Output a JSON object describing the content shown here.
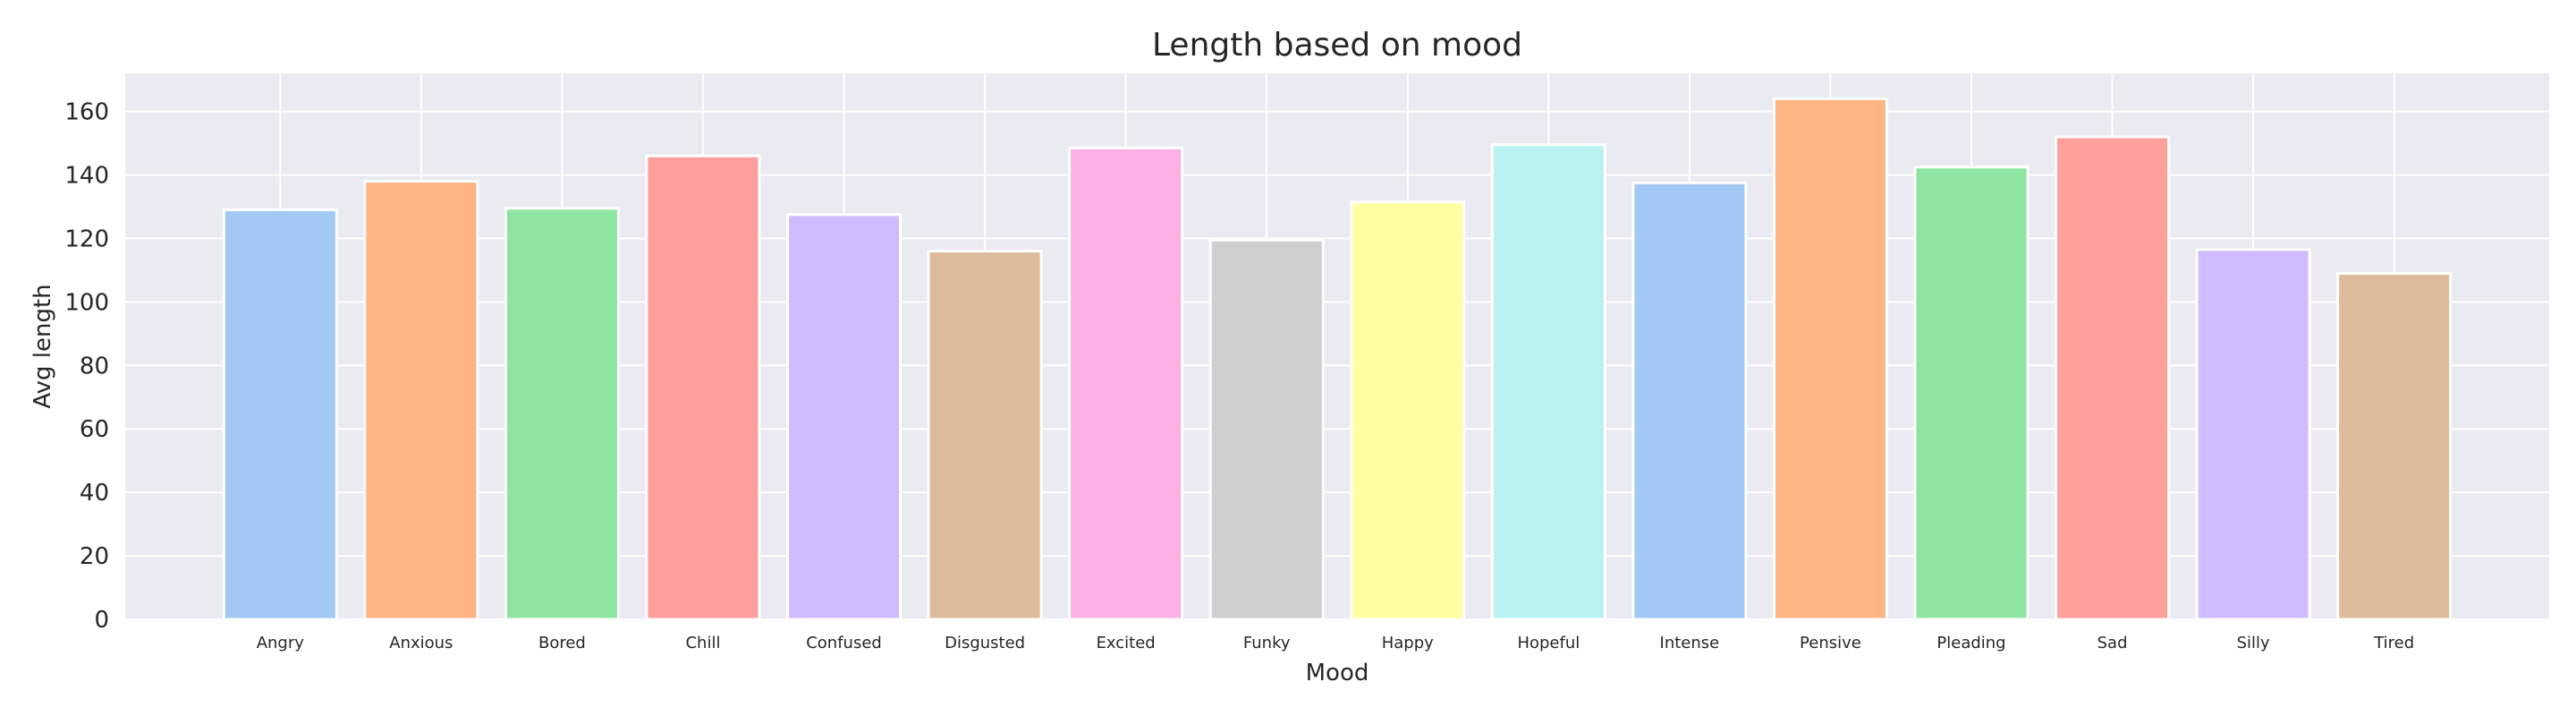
{
  "chart_data": {
    "type": "bar",
    "title": "Length based on mood",
    "xlabel": "Mood",
    "ylabel": "Avg length",
    "categories": [
      "Angry",
      "Anxious",
      "Bored",
      "Chill",
      "Confused",
      "Disgusted",
      "Excited",
      "Funky",
      "Happy",
      "Hopeful",
      "Intense",
      "Pensive",
      "Pleading",
      "Sad",
      "Silly",
      "Tired"
    ],
    "values": [
      129,
      138,
      129.5,
      146,
      127.5,
      116,
      148.5,
      119.5,
      131.5,
      149.5,
      137.5,
      164,
      142.5,
      152,
      116.5,
      109
    ],
    "ylim": [
      0,
      172
    ],
    "yticks": [
      0,
      20,
      40,
      60,
      80,
      100,
      120,
      140,
      160
    ],
    "grid": true,
    "colors": [
      "#a1c9f4",
      "#ffb482",
      "#8de5a1",
      "#ff9f9b",
      "#d0bbff",
      "#debb9b",
      "#fab0e4",
      "#cfcfcf",
      "#fffea3",
      "#b9f2f0",
      "#a1c9f4",
      "#ffb482",
      "#8de5a1",
      "#ff9f9b",
      "#d0bbff",
      "#debb9b"
    ],
    "plot_background": "#eaeaf2",
    "grid_color": "#ffffff"
  }
}
